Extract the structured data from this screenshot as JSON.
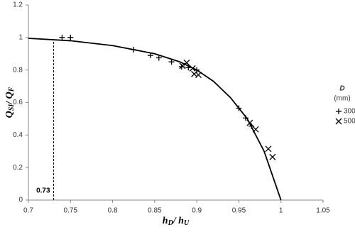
{
  "chart_data": {
    "type": "scatter",
    "x_label": [
      "h",
      "D",
      "/ h",
      "U"
    ],
    "y_label": [
      "Q",
      "SI",
      "/ Q",
      "F"
    ],
    "xlim": [
      0.7,
      1.05
    ],
    "xticks": [
      0.7,
      0.75,
      0.8,
      0.85,
      0.9,
      0.95,
      1,
      1.05
    ],
    "ylim": [
      0,
      1.2
    ],
    "yticks": [
      0,
      0.2,
      0.4,
      0.6,
      0.8,
      1,
      1.2
    ],
    "legend_title": [
      "D",
      "(mm)"
    ],
    "series": [
      {
        "name": "300",
        "marker": "plus",
        "color": "#000000",
        "x": [
          0.74,
          0.75,
          0.825,
          0.845,
          0.855,
          0.87,
          0.882,
          0.89,
          0.9,
          0.95,
          0.958,
          0.965
        ],
        "values": [
          1.0,
          1.0,
          0.925,
          0.89,
          0.875,
          0.85,
          0.82,
          0.815,
          0.8,
          0.565,
          0.505,
          0.455
        ]
      },
      {
        "name": "500",
        "marker": "cross",
        "color": "#000000",
        "x": [
          0.883,
          0.888,
          0.895,
          0.897,
          0.902,
          0.963,
          0.97,
          0.985,
          0.99
        ],
        "values": [
          0.825,
          0.845,
          0.81,
          0.775,
          0.77,
          0.475,
          0.435,
          0.315,
          0.265
        ]
      }
    ],
    "curve": {
      "color": "#000000",
      "x": [
        0.7,
        0.75,
        0.8,
        0.85,
        0.88,
        0.9,
        0.92,
        0.94,
        0.96,
        0.98,
        1.0
      ],
      "values": [
        0.995,
        0.98,
        0.95,
        0.9,
        0.85,
        0.8,
        0.73,
        0.63,
        0.5,
        0.3,
        0
      ]
    },
    "annotation": {
      "text": "0.73",
      "x": 0.73
    }
  }
}
